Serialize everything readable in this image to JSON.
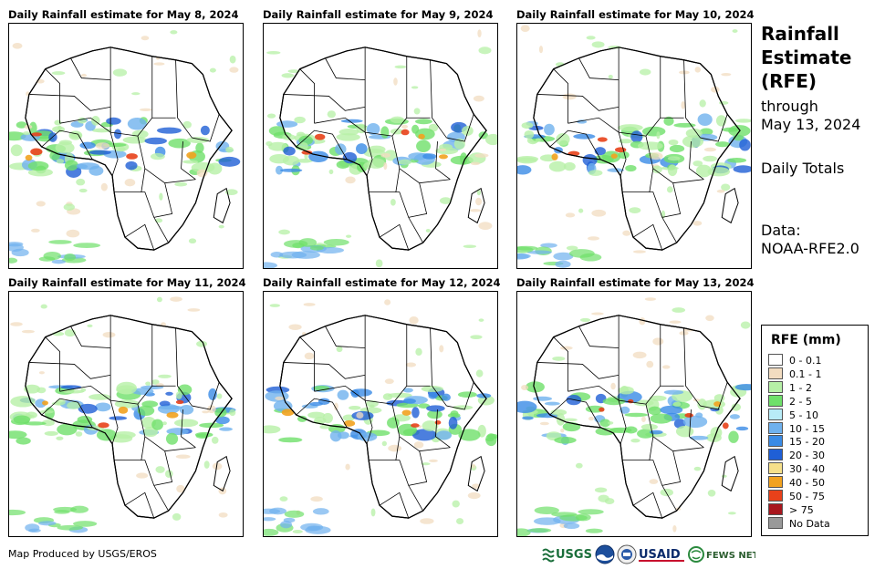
{
  "panels": [
    {
      "title": "Daily Rainfall estimate for May 8, 2024"
    },
    {
      "title": "Daily Rainfall estimate for May 9, 2024"
    },
    {
      "title": "Daily Rainfall estimate for May 10, 2024"
    },
    {
      "title": "Daily Rainfall estimate for May 11, 2024"
    },
    {
      "title": "Daily Rainfall estimate for May 12, 2024"
    },
    {
      "title": "Daily Rainfall estimate for May 13, 2024"
    }
  ],
  "sidebar": {
    "title_line1": "Rainfall",
    "title_line2": "Estimate",
    "title_line3": "(RFE)",
    "through_label": "through",
    "through_date": "May 13, 2024",
    "totals_label": "Daily Totals",
    "data_label": "Data:",
    "data_source": "NOAA-RFE2.0"
  },
  "legend": {
    "title": "RFE (mm)",
    "items": [
      {
        "label": "0 - 0.1",
        "color": "#ffffff"
      },
      {
        "label": "0.1 - 1",
        "color": "#f2dcc0"
      },
      {
        "label": "1 - 2",
        "color": "#b6f0a6"
      },
      {
        "label": "2 - 5",
        "color": "#6fe06a"
      },
      {
        "label": "5 - 10",
        "color": "#b8ecf7"
      },
      {
        "label": "10 - 15",
        "color": "#6fb1ee"
      },
      {
        "label": "15 - 20",
        "color": "#3a8be6"
      },
      {
        "label": "20 - 30",
        "color": "#1f5fd6"
      },
      {
        "label": "30 - 40",
        "color": "#f6e08a"
      },
      {
        "label": "40 - 50",
        "color": "#f2a21f"
      },
      {
        "label": "50 - 75",
        "color": "#e8411a"
      },
      {
        "label": "> 75",
        "color": "#a8161d"
      },
      {
        "label": "No Data",
        "color": "#999999"
      }
    ]
  },
  "footer": {
    "credit": "Map Produced by USGS/EROS",
    "logo_usgs": "USGS",
    "logo_usaid": "USAID",
    "logo_fewsnet": "FEWS NET"
  }
}
